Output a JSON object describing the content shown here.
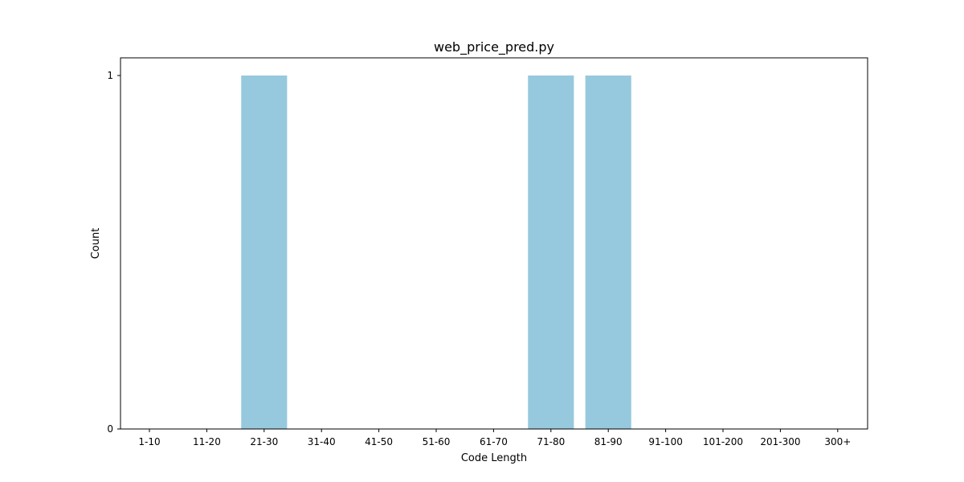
{
  "chart_data": {
    "type": "bar",
    "title": "web_price_pred.py",
    "xlabel": "Code Length",
    "ylabel": "Count",
    "categories": [
      "1-10",
      "11-20",
      "21-30",
      "31-40",
      "41-50",
      "51-60",
      "61-70",
      "71-80",
      "81-90",
      "91-100",
      "101-200",
      "201-300",
      "300+"
    ],
    "values": [
      0,
      0,
      1,
      0,
      0,
      0,
      0,
      1,
      1,
      0,
      0,
      0,
      0
    ],
    "ylim": [
      0,
      1.05
    ],
    "yticks": [
      0,
      1
    ],
    "grid": false,
    "legend": "none",
    "bar_color": "#96c9dd"
  }
}
